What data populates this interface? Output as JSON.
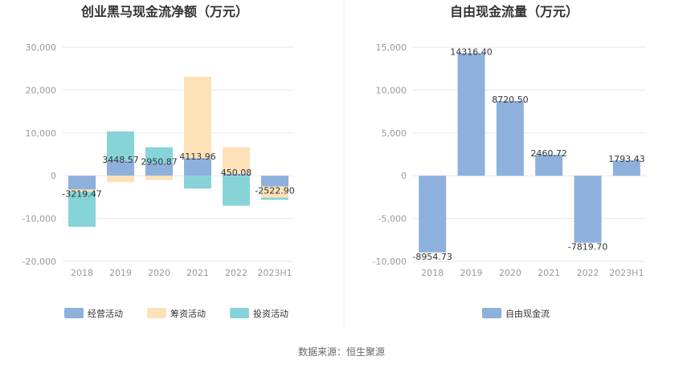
{
  "chart_data": [
    {
      "type": "bar",
      "stacked": true,
      "title": "创业黑马现金流净额（万元）",
      "categories": [
        "2018",
        "2019",
        "2020",
        "2021",
        "2022",
        "2023H1"
      ],
      "series": [
        {
          "name": "经营活动",
          "values": [
            -3219.47,
            3448.57,
            2950.87,
            4113.96,
            450.08,
            -2522.9
          ],
          "color": "#8eb0dc"
        },
        {
          "name": "筹资活动",
          "values": [
            -500,
            -1500,
            -1000,
            19000,
            6200,
            -2600
          ],
          "color": "#fde2b8"
        },
        {
          "name": "投资活动",
          "values": [
            -8200,
            6900,
            3700,
            -3000,
            -7000,
            -500
          ],
          "color": "#86d4d8"
        }
      ],
      "data_labels": [
        "-3219.47",
        "3448.57",
        "2950.87",
        "4113.96",
        "450.08",
        "-2522.90"
      ],
      "y_ticks": [
        "30,000",
        "20,000",
        "10,000",
        "0",
        "-10,000",
        "-20,000"
      ],
      "ylim": [
        -20000,
        30000
      ],
      "legend_position": "bottom-center"
    },
    {
      "type": "bar",
      "title": "自由现金流量（万元）",
      "categories": [
        "2018",
        "2019",
        "2020",
        "2021",
        "2022",
        "2023H1"
      ],
      "series": [
        {
          "name": "自由现金流",
          "values": [
            -8954.73,
            14316.4,
            8720.5,
            2460.72,
            -7819.7,
            1793.43
          ],
          "color": "#8eb0dc"
        }
      ],
      "data_labels": [
        "-8954.73",
        "14316.40",
        "8720.50",
        "2460.72",
        "-7819.70",
        "1793.43"
      ],
      "y_ticks": [
        "15,000",
        "10,000",
        "5,000",
        "0",
        "-5,000",
        "-10,000"
      ],
      "ylim": [
        -10000,
        15000
      ],
      "legend_position": "bottom-center"
    }
  ],
  "source_text": "数据来源：恒生聚源",
  "colors": {
    "grid": "#e6e6f0",
    "divider": "#eeeeee"
  }
}
